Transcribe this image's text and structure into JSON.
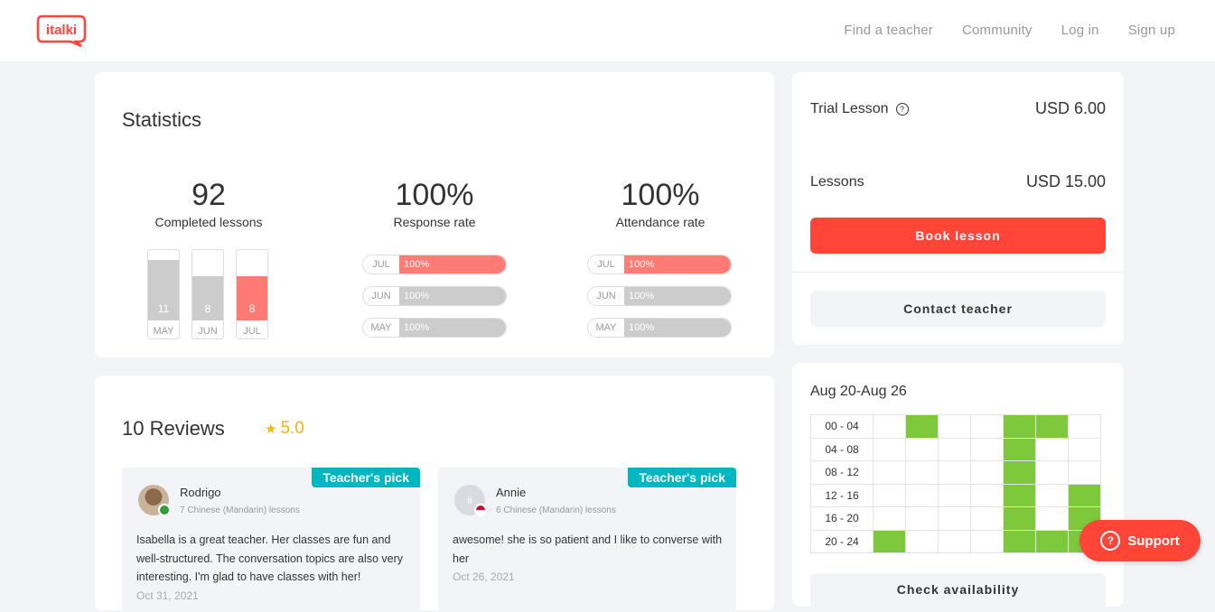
{
  "header": {
    "logo_text": "italki",
    "nav": [
      "Find a teacher",
      "Community",
      "Log in",
      "Sign up"
    ]
  },
  "statistics": {
    "title": "Statistics",
    "completed": {
      "value": "92",
      "label": "Completed lessons",
      "bars": [
        {
          "month": "MAY",
          "value": 11,
          "fraction": 0.86,
          "color": "#cccccc"
        },
        {
          "month": "JUN",
          "value": 8,
          "fraction": 0.63,
          "color": "#cccccc"
        },
        {
          "month": "JUL",
          "value": 8,
          "fraction": 0.63,
          "color": "#ff7b74"
        }
      ]
    },
    "response": {
      "value": "100%",
      "label": "Response rate",
      "rows": [
        {
          "month": "JUL",
          "percent": "100%",
          "fraction": 1.0,
          "color": "#ff7b74"
        },
        {
          "month": "JUN",
          "percent": "100%",
          "fraction": 1.0,
          "color": "#cccccc"
        },
        {
          "month": "MAY",
          "percent": "100%",
          "fraction": 1.0,
          "color": "#cccccc"
        }
      ]
    },
    "attendance": {
      "value": "100%",
      "label": "Attendance rate",
      "rows": [
        {
          "month": "JUL",
          "percent": "100%",
          "fraction": 1.0,
          "color": "#ff7b74"
        },
        {
          "month": "JUN",
          "percent": "100%",
          "fraction": 1.0,
          "color": "#cccccc"
        },
        {
          "month": "MAY",
          "percent": "100%",
          "fraction": 1.0,
          "color": "#cccccc"
        }
      ]
    }
  },
  "reviews": {
    "title": "10 Reviews",
    "rating": "5.0",
    "items": [
      {
        "badge": "Teacher's pick",
        "name": "Rodrigo",
        "meta": "7 Chinese (Mandarin) lessons",
        "text": "Isabella is a great teacher. Her classes are fun and well-structured. The conversation topics are also very interesting. I'm glad to have classes with her!",
        "date": "Oct 31, 2021"
      },
      {
        "badge": "Teacher's pick",
        "name": "Annie",
        "meta": "6 Chinese (Mandarin) lessons",
        "text": "awesome! she is so patient and I like to converse with her",
        "date": "Oct 26, 2021"
      }
    ]
  },
  "pricing": {
    "trial_label": "Trial Lesson",
    "trial_price": "USD 6.00",
    "lessons_label": "Lessons",
    "lessons_price": "USD 15.00",
    "book_label": "Book lesson",
    "contact_label": "Contact teacher"
  },
  "availability": {
    "title": "Aug 20-Aug 26",
    "slots": [
      "00 - 04",
      "04 - 08",
      "08 - 12",
      "12 - 16",
      "16 - 20",
      "20 - 24"
    ],
    "grid": [
      [
        0,
        1,
        0,
        0,
        1,
        1,
        0
      ],
      [
        0,
        0,
        0,
        0,
        1,
        0,
        0
      ],
      [
        0,
        0,
        0,
        0,
        1,
        0,
        0
      ],
      [
        0,
        0,
        0,
        0,
        1,
        0,
        1
      ],
      [
        0,
        0,
        0,
        0,
        1,
        0,
        1
      ],
      [
        1,
        0,
        0,
        0,
        1,
        1,
        1
      ]
    ],
    "check_label": "Check availability"
  },
  "support": {
    "label": "Support"
  },
  "colors": {
    "accent": "#ff4438",
    "available": "#7ec93b",
    "pick": "#00b6c0"
  }
}
